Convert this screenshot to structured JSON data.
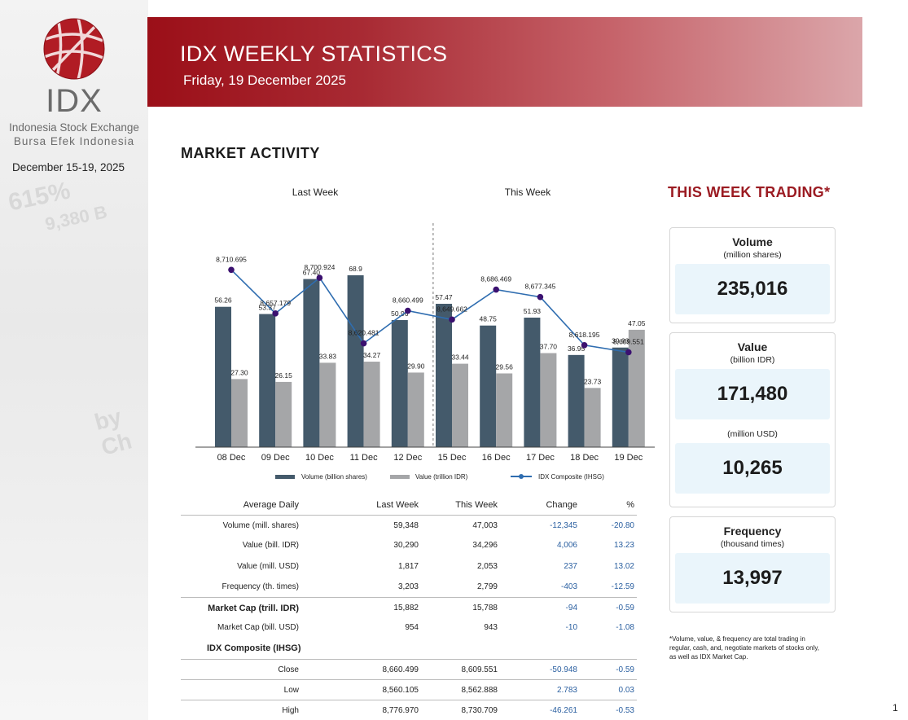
{
  "sidebar": {
    "logo_text": "IDX",
    "logo_sub1": "Indonesia Stock Exchange",
    "logo_sub2": "Bursa Efek Indonesia",
    "date_range": "December 15-19, 2025"
  },
  "header": {
    "title": "IDX WEEKLY STATISTICS",
    "date": "Friday, 19 December 2025"
  },
  "section_title": "MARKET ACTIVITY",
  "chart_data": {
    "type": "bar",
    "group_labels": [
      "Last Week",
      "This Week"
    ],
    "categories": [
      "08 Dec",
      "09 Dec",
      "10 Dec",
      "11 Dec",
      "12 Dec",
      "15 Dec",
      "16 Dec",
      "17 Dec",
      "18 Dec",
      "19 Dec"
    ],
    "series": [
      {
        "name": "Volume (billion shares)",
        "type": "bar",
        "color": "#445a6b",
        "values": [
          56.26,
          53.37,
          67.4,
          68.92,
          50.96,
          57.47,
          48.75,
          51.93,
          36.95,
          39.93
        ],
        "labels": [
          "56.26",
          "53.37",
          "67.40",
          "68.9",
          "50.96",
          "57.47",
          "48.75",
          "51.93",
          "36.95",
          "39.93"
        ]
      },
      {
        "name": "Value (trillion IDR)",
        "type": "bar",
        "color": "#a5a6a8",
        "values": [
          27.3,
          26.15,
          33.83,
          34.27,
          29.9,
          33.44,
          29.56,
          37.7,
          23.73,
          47.05
        ],
        "labels": [
          "27.30",
          "26.15",
          "33.83",
          "34.27",
          "29.90",
          "33.44",
          "29.56",
          "37.70",
          "23.73",
          "47.05"
        ]
      },
      {
        "name": "IDX Composite (IHSG)",
        "type": "line",
        "color": "#2f6db0",
        "marker_color": "#3b1170",
        "values": [
          8710.695,
          8657.179,
          8700.924,
          8620.481,
          8660.499,
          8649.662,
          8686.469,
          8677.345,
          8618.195,
          8609.551
        ],
        "labels": [
          "8,710.695",
          "8,657.179",
          "8,700.924",
          "8,620.481",
          "8,660.499",
          "8,649.662",
          "8,686.469",
          "8,677.345",
          "8,618.195",
          "8,609.551"
        ]
      }
    ],
    "bar_ylim": [
      0,
      80
    ],
    "line_ylim": [
      8460,
      8760
    ]
  },
  "table": {
    "headers": [
      "Average Daily",
      "Last Week",
      "This Week",
      "Change",
      "%"
    ],
    "rows": [
      [
        "Volume (mill. shares)",
        "59,348",
        "47,003",
        "-12,345",
        "-20.80"
      ],
      [
        "Value (bill. IDR)",
        "30,290",
        "34,296",
        "4,006",
        "13.23"
      ],
      [
        "Value (mill. USD)",
        "1,817",
        "2,053",
        "237",
        "13.02"
      ],
      [
        "Frequency (th. times)",
        "3,203",
        "2,799",
        "-403",
        "-12.59"
      ],
      [
        "Market Cap (trill. IDR)",
        "15,882",
        "15,788",
        "-94",
        "-0.59"
      ],
      [
        "Market Cap (bill. USD)",
        "954",
        "943",
        "-10",
        "-1.08"
      ]
    ],
    "ihsg_label": "IDX Composite (IHSG)",
    "ihsg_rows": [
      [
        "Close",
        "8,660.499",
        "8,609.551",
        "-50.948",
        "-0.59"
      ],
      [
        "Low",
        "8,560.105",
        "8,562.888",
        "2.783",
        "0.03"
      ],
      [
        "High",
        "8,776.970",
        "8,730.709",
        "-46.261",
        "-0.53"
      ]
    ]
  },
  "trading": {
    "title": "THIS WEEK TRADING*",
    "volume": {
      "label": "Volume",
      "unit": "(million shares)",
      "value": "235,016"
    },
    "value": {
      "label": "Value",
      "unit": "(billion IDR)",
      "value": "171,480",
      "unit_usd": "(million USD)",
      "value_usd": "10,265"
    },
    "frequency": {
      "label": "Frequency",
      "unit": "(thousand times)",
      "value": "13,997"
    },
    "footnote": "*Volume, value, & frequency are total trading in regular, cash, and, negotiate markets of stocks only, as well as IDX Market Cap."
  },
  "page_number": "1"
}
